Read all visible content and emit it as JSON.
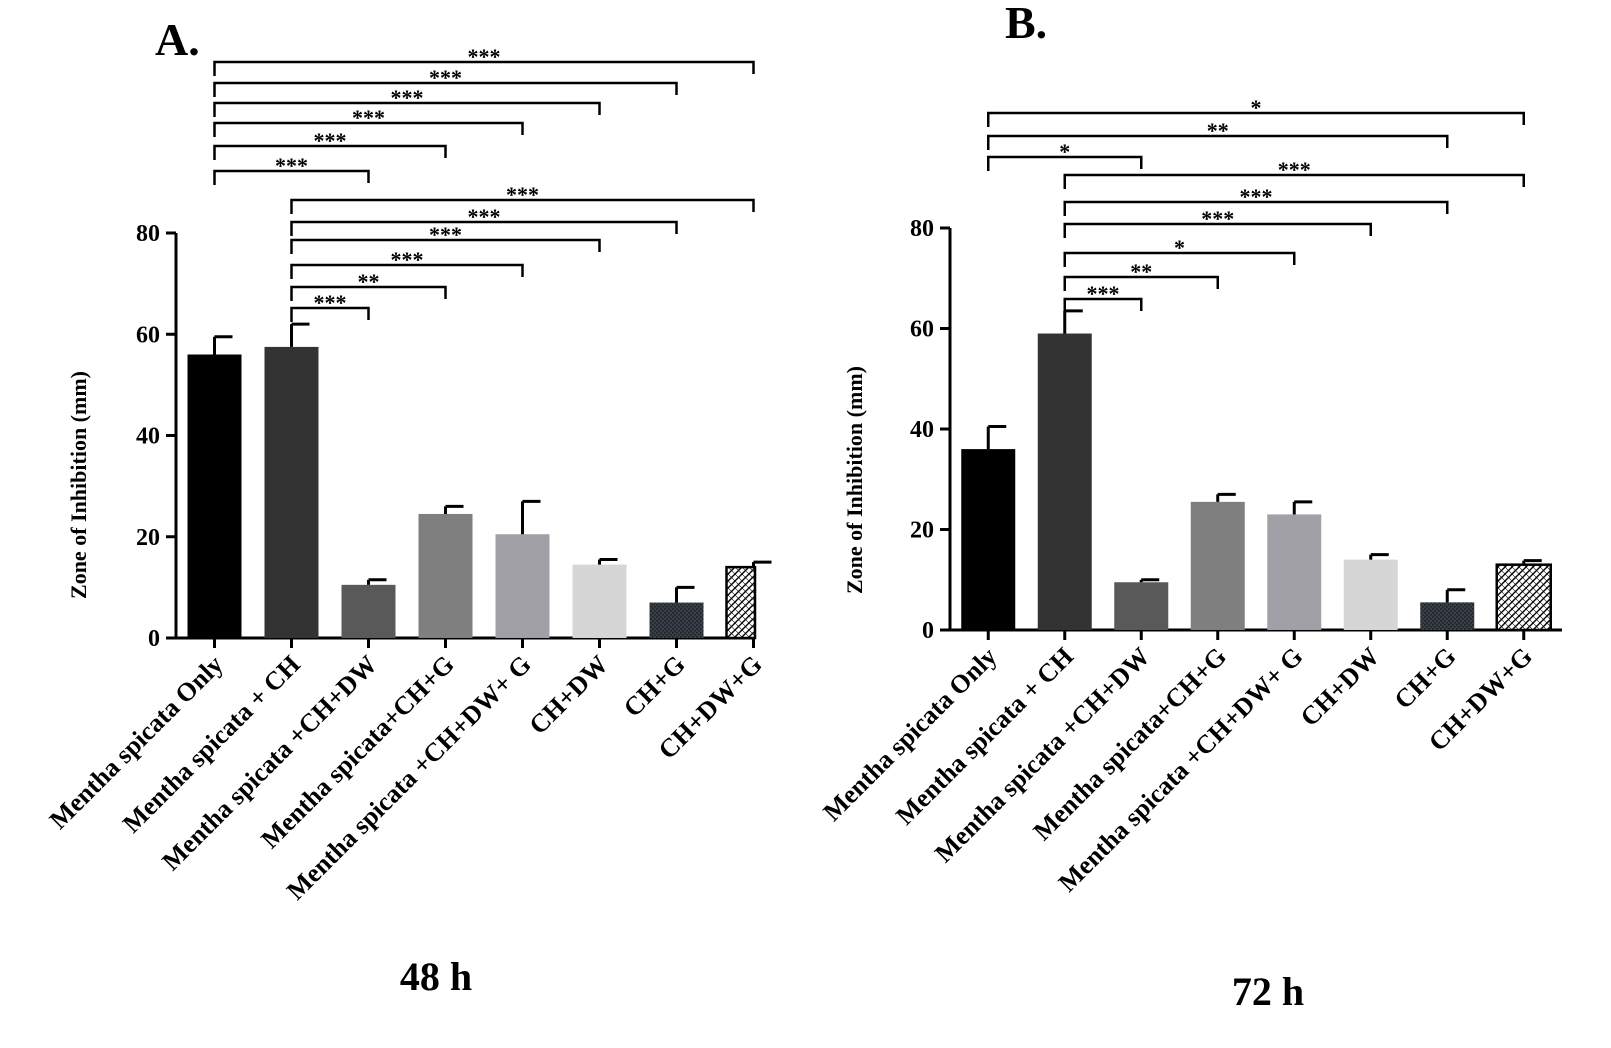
{
  "chart_data": [
    {
      "type": "bar",
      "panel": "A.",
      "subtitle": "48 h",
      "ylabel": "Zone of Inhibition (mm)",
      "ylim": [
        0,
        80
      ],
      "yticks": [
        "0",
        "20",
        "40",
        "60",
        "80"
      ],
      "categories": [
        "Mentha spicata Only",
        "Mentha spicata + CH",
        "Mentha spicata +CH+DW",
        "Mentha spicata+CH+G",
        "Mentha spicata +CH+DW+ G",
        "CH+DW",
        "CH+G",
        "CH+DW+G"
      ],
      "values": [
        56,
        57.5,
        10.5,
        24.5,
        20.5,
        14.5,
        7,
        14
      ],
      "errors": [
        3.5,
        4.5,
        1,
        1.5,
        6.5,
        1,
        3,
        1
      ],
      "colors": [
        "#000000",
        "#333333",
        "#595959",
        "#7f7f7f",
        "#a0a0a6",
        "#d6d6d6",
        "#3a4048",
        "#ffffff"
      ],
      "significance": [
        {
          "from": 0,
          "to": 7,
          "label": "***"
        },
        {
          "from": 0,
          "to": 6,
          "label": "***"
        },
        {
          "from": 0,
          "to": 5,
          "label": "***"
        },
        {
          "from": 0,
          "to": 4,
          "label": "***"
        },
        {
          "from": 0,
          "to": 3,
          "label": "***"
        },
        {
          "from": 0,
          "to": 2,
          "label": "***"
        },
        {
          "from": 1,
          "to": 7,
          "label": "***"
        },
        {
          "from": 1,
          "to": 6,
          "label": "***"
        },
        {
          "from": 1,
          "to": 5,
          "label": "***"
        },
        {
          "from": 1,
          "to": 4,
          "label": "***"
        },
        {
          "from": 1,
          "to": 3,
          "label": "**"
        },
        {
          "from": 1,
          "to": 2,
          "label": "***"
        }
      ]
    },
    {
      "type": "bar",
      "panel": "B.",
      "subtitle": "72 h",
      "ylabel": "Zone of Inhibition (mm)",
      "ylim": [
        0,
        80
      ],
      "yticks": [
        "0",
        "20",
        "40",
        "60",
        "80"
      ],
      "categories": [
        "Mentha spicata Only",
        "Mentha spicata + CH",
        "Mentha spicata +CH+DW",
        "Mentha spicata+CH+G",
        "Mentha spicata +CH+DW+ G",
        "CH+DW",
        "CH+G",
        "CH+DW+G"
      ],
      "values": [
        36,
        59,
        9.5,
        25.5,
        23,
        14,
        5.5,
        13
      ],
      "errors": [
        4.5,
        4.5,
        0.5,
        1.5,
        2.5,
        1,
        2.5,
        0.8
      ],
      "colors": [
        "#000000",
        "#333333",
        "#595959",
        "#7f7f7f",
        "#a0a0a6",
        "#d6d6d6",
        "#3a4048",
        "#ffffff"
      ],
      "significance": [
        {
          "from": 0,
          "to": 7,
          "label": "*"
        },
        {
          "from": 0,
          "to": 6,
          "label": "**"
        },
        {
          "from": 0,
          "to": 2,
          "label": "*"
        },
        {
          "from": 1,
          "to": 7,
          "label": "***"
        },
        {
          "from": 1,
          "to": 6,
          "label": "***"
        },
        {
          "from": 1,
          "to": 5,
          "label": "***"
        },
        {
          "from": 1,
          "to": 4,
          "label": "*"
        },
        {
          "from": 1,
          "to": 3,
          "label": "**"
        },
        {
          "from": 1,
          "to": 2,
          "label": "***"
        }
      ]
    }
  ]
}
